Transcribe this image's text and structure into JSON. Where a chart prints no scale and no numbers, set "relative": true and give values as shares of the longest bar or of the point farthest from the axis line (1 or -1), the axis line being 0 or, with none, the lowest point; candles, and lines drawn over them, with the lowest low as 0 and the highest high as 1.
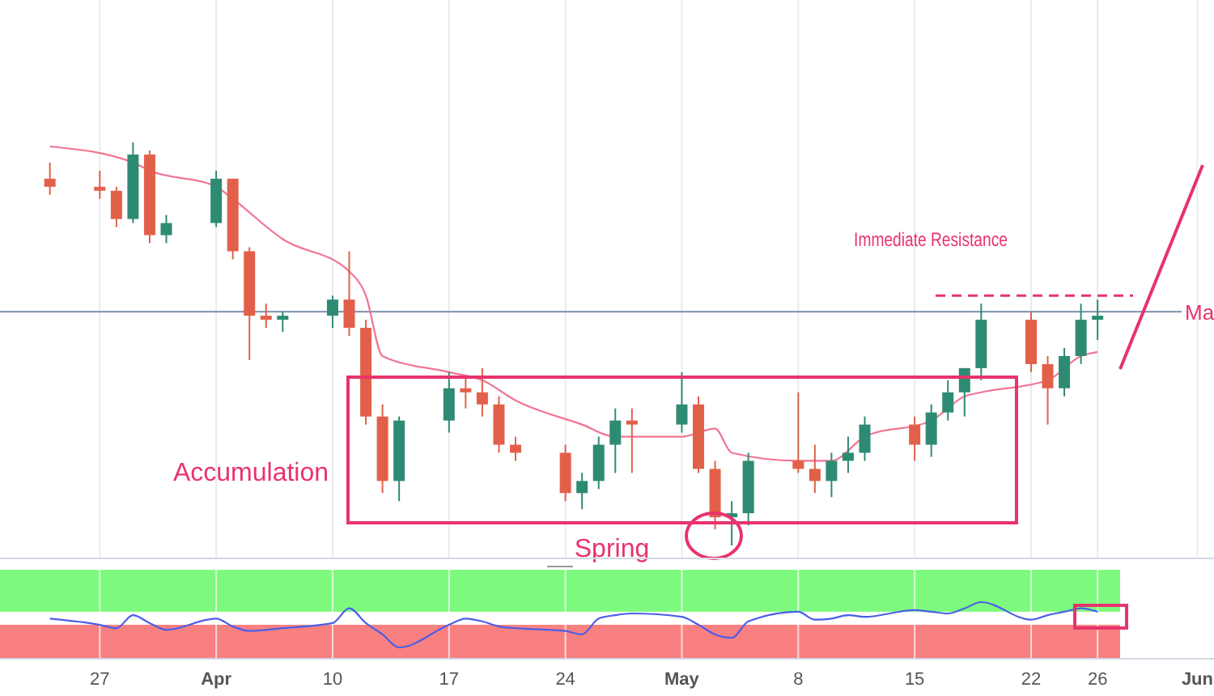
{
  "chart_data": [
    {
      "type": "candlestick",
      "relative": true,
      "tick_labels": false,
      "grid": "x",
      "xlim": [
        "--03-21",
        "--06-02"
      ],
      "xticks": [
        {
          "value": "--03-27",
          "label": null
        },
        {
          "value": "--04-03",
          "label": null
        },
        {
          "value": "--04-10",
          "label": null
        },
        {
          "value": "--04-17",
          "label": null
        },
        {
          "value": "--04-24",
          "label": null
        },
        {
          "value": "--05-01",
          "label": null
        },
        {
          "value": "--05-08",
          "label": null
        },
        {
          "value": "--05-15",
          "label": null
        },
        {
          "value": "--05-22",
          "label": null
        },
        {
          "value": "--05-26",
          "label": null
        },
        {
          "value": "--06-01",
          "label": null
        }
      ],
      "x": [
        "--03-24",
        "--03-27",
        "--03-28",
        "--03-29",
        "--03-30",
        "--03-31",
        "--04-03",
        "--04-04",
        "--04-05",
        "--04-06",
        "--04-07",
        "--04-10",
        "--04-11",
        "--04-12",
        "--04-13",
        "--04-14",
        "--04-17",
        "--04-18",
        "--04-19",
        "--04-20",
        "--04-21",
        "--04-24",
        "--04-25",
        "--04-26",
        "--04-27",
        "--04-28",
        "--05-01",
        "--05-02",
        "--05-03",
        "--05-04",
        "--05-05",
        "--05-08",
        "--05-09",
        "--05-10",
        "--05-11",
        "--05-12",
        "--05-15",
        "--05-16",
        "--05-17",
        "--05-18",
        "--05-19",
        "--05-22",
        "--05-23",
        "--05-24",
        "--05-25",
        "--05-26"
      ],
      "ohlc": [
        [
          0.91,
          0.95,
          0.87,
          0.89
        ],
        [
          0.89,
          0.93,
          0.86,
          0.88
        ],
        [
          0.88,
          0.89,
          0.79,
          0.81
        ],
        [
          0.81,
          1.0,
          0.8,
          0.97
        ],
        [
          0.97,
          0.98,
          0.75,
          0.77
        ],
        [
          0.77,
          0.82,
          0.75,
          0.8
        ],
        [
          0.8,
          0.93,
          0.79,
          0.91
        ],
        [
          0.91,
          0.91,
          0.71,
          0.73
        ],
        [
          0.73,
          0.74,
          0.46,
          0.57
        ],
        [
          0.57,
          0.6,
          0.54,
          0.56
        ],
        [
          0.56,
          0.58,
          0.53,
          0.57
        ],
        [
          0.57,
          0.62,
          0.54,
          0.61
        ],
        [
          0.61,
          0.73,
          0.52,
          0.54
        ],
        [
          0.54,
          0.56,
          0.3,
          0.32
        ],
        [
          0.32,
          0.35,
          0.13,
          0.16
        ],
        [
          0.16,
          0.32,
          0.11,
          0.31
        ],
        [
          0.31,
          0.43,
          0.28,
          0.39
        ],
        [
          0.39,
          0.42,
          0.34,
          0.38
        ],
        [
          0.38,
          0.44,
          0.32,
          0.35
        ],
        [
          0.35,
          0.37,
          0.23,
          0.25
        ],
        [
          0.25,
          0.27,
          0.21,
          0.23
        ],
        [
          0.23,
          0.25,
          0.11,
          0.13
        ],
        [
          0.13,
          0.18,
          0.09,
          0.16
        ],
        [
          0.16,
          0.27,
          0.14,
          0.25
        ],
        [
          0.25,
          0.34,
          0.18,
          0.31
        ],
        [
          0.31,
          0.34,
          0.18,
          0.3
        ],
        [
          0.3,
          0.43,
          0.28,
          0.35
        ],
        [
          0.35,
          0.37,
          0.18,
          0.19
        ],
        [
          0.19,
          0.21,
          0.04,
          0.07
        ],
        [
          0.07,
          0.11,
          0.0,
          0.08
        ],
        [
          0.08,
          0.23,
          0.05,
          0.21
        ],
        [
          0.21,
          0.38,
          0.18,
          0.19
        ],
        [
          0.19,
          0.25,
          0.13,
          0.16
        ],
        [
          0.16,
          0.23,
          0.12,
          0.21
        ],
        [
          0.21,
          0.27,
          0.18,
          0.23
        ],
        [
          0.23,
          0.32,
          0.21,
          0.3
        ],
        [
          0.3,
          0.32,
          0.21,
          0.25
        ],
        [
          0.25,
          0.35,
          0.22,
          0.33
        ],
        [
          0.33,
          0.41,
          0.31,
          0.38
        ],
        [
          0.38,
          0.44,
          0.32,
          0.44
        ],
        [
          0.44,
          0.6,
          0.41,
          0.56
        ],
        [
          0.56,
          0.58,
          0.43,
          0.45
        ],
        [
          0.45,
          0.47,
          0.3,
          0.39
        ],
        [
          0.39,
          0.49,
          0.37,
          0.47
        ],
        [
          0.47,
          0.6,
          0.45,
          0.56
        ],
        [
          0.56,
          0.61,
          0.51,
          0.57
        ]
      ],
      "series": [
        {
          "type": "line",
          "color": "#f27593",
          "x": [
            "--03-24",
            "--03-29",
            "--03-30",
            "--04-03",
            "--04-04",
            "--04-07",
            "--04-11",
            "--04-12",
            "--04-13",
            "--04-17",
            "--04-19",
            "--04-21",
            "--04-25",
            "--04-27",
            "--05-01",
            "--05-03",
            "--05-04",
            "--05-08",
            "--05-10",
            "--05-12",
            "--05-16",
            "--05-18",
            "--05-19",
            "--05-23",
            "--05-25",
            "--05-26"
          ],
          "values": [
            0.99,
            0.95,
            0.93,
            0.89,
            0.86,
            0.76,
            0.68,
            0.62,
            0.47,
            0.43,
            0.41,
            0.36,
            0.3,
            0.27,
            0.27,
            0.29,
            0.23,
            0.21,
            0.21,
            0.27,
            0.31,
            0.37,
            0.38,
            0.41,
            0.47,
            0.48
          ]
        }
      ],
      "ref_lines": [
        {
          "axis": "y",
          "value": 0.58,
          "label": "Ma",
          "color": "#8a9ab5"
        },
        {
          "axis": "y",
          "value": 0.62,
          "color": "#e8336d",
          "line_style": "dashed"
        }
      ],
      "annotations": [
        "Accumulation",
        "Spring",
        "Immediate Resistance"
      ]
    },
    {
      "type": "line",
      "relative": true,
      "tick_labels": "x",
      "grid": "x",
      "xlim": [
        "--03-21",
        "--06-02"
      ],
      "xticks": [
        {
          "value": "--03-27",
          "label": "27"
        },
        {
          "value": "--04-03",
          "label": "Apr"
        },
        {
          "value": "--04-10",
          "label": "10"
        },
        {
          "value": "--04-17",
          "label": "17"
        },
        {
          "value": "--04-24",
          "label": "24"
        },
        {
          "value": "--05-01",
          "label": "May"
        },
        {
          "value": "--05-08",
          "label": "8"
        },
        {
          "value": "--05-15",
          "label": "15"
        },
        {
          "value": "--05-22",
          "label": "22"
        },
        {
          "value": "--05-26",
          "label": "26"
        },
        {
          "value": "--06-01",
          "label": "Jun"
        }
      ],
      "series": [
        {
          "color": "#4a5ee8",
          "x": [
            "--03-24",
            "--03-27",
            "--03-28",
            "--03-29",
            "--03-30",
            "--03-31",
            "--04-03",
            "--04-04",
            "--04-05",
            "--04-06",
            "--04-07",
            "--04-10",
            "--04-11",
            "--04-12",
            "--04-13",
            "--04-14",
            "--04-17",
            "--04-18",
            "--04-19",
            "--04-20",
            "--04-21",
            "--04-24",
            "--04-25",
            "--04-26",
            "--04-27",
            "--04-28",
            "--05-01",
            "--05-02",
            "--05-03",
            "--05-04",
            "--05-05",
            "--05-08",
            "--05-09",
            "--05-10",
            "--05-11",
            "--05-12",
            "--05-15",
            "--05-16",
            "--05-17",
            "--05-18",
            "--05-19",
            "--05-22",
            "--05-23",
            "--05-24",
            "--05-25",
            "--05-26"
          ],
          "values": [
            0.71,
            0.6,
            0.54,
            0.77,
            0.63,
            0.51,
            0.71,
            0.57,
            0.49,
            0.51,
            0.54,
            0.63,
            0.89,
            0.63,
            0.43,
            0.2,
            0.6,
            0.71,
            0.66,
            0.57,
            0.54,
            0.49,
            0.43,
            0.71,
            0.77,
            0.8,
            0.74,
            0.6,
            0.43,
            0.37,
            0.66,
            0.83,
            0.69,
            0.71,
            0.77,
            0.74,
            0.86,
            0.83,
            0.8,
            0.89,
            1,
            0.69,
            0.77,
            0.83,
            0.89,
            0.83
          ]
        }
      ],
      "bands": [
        {
          "axis": "y",
          "from": 0.83,
          "to": 1.57,
          "color": "#7dfa7d"
        },
        {
          "axis": "y",
          "from": 0,
          "to": 0.6,
          "color": "#f98080"
        }
      ]
    }
  ]
}
